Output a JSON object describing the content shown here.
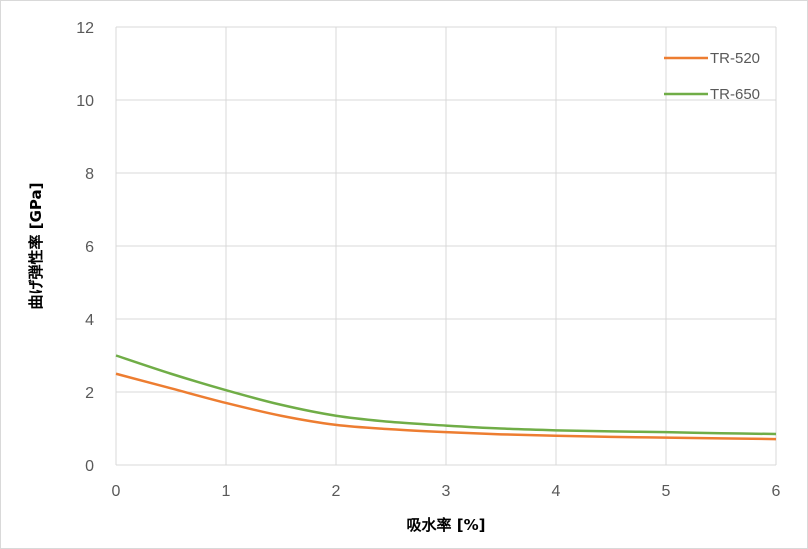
{
  "chart_data": {
    "type": "line",
    "title": "",
    "xlabel": "吸水率 [%]",
    "ylabel": "曲げ弾性率 [GPa]",
    "xlim": [
      0,
      6
    ],
    "ylim": [
      0,
      12
    ],
    "x_ticks": [
      "0",
      "1",
      "2",
      "3",
      "4",
      "5",
      "6"
    ],
    "y_ticks": [
      "0",
      "2",
      "4",
      "6",
      "8",
      "10",
      "12"
    ],
    "grid": true,
    "legend_position": "top-right",
    "series": [
      {
        "name": "TR-520",
        "color": "#ed7d31",
        "x": [
          0,
          0.5,
          1,
          1.5,
          2,
          2.5,
          3,
          3.5,
          4,
          4.5,
          5,
          5.5,
          6
        ],
        "y": [
          2.5,
          2.1,
          1.7,
          1.35,
          1.1,
          0.98,
          0.9,
          0.84,
          0.8,
          0.77,
          0.75,
          0.73,
          0.71
        ]
      },
      {
        "name": "TR-650",
        "color": "#70ad47",
        "x": [
          0,
          0.5,
          1,
          1.5,
          2,
          2.5,
          3,
          3.5,
          4,
          4.5,
          5,
          5.5,
          6
        ],
        "y": [
          3.0,
          2.5,
          2.05,
          1.65,
          1.35,
          1.18,
          1.08,
          1.0,
          0.95,
          0.92,
          0.9,
          0.87,
          0.85
        ]
      }
    ]
  }
}
